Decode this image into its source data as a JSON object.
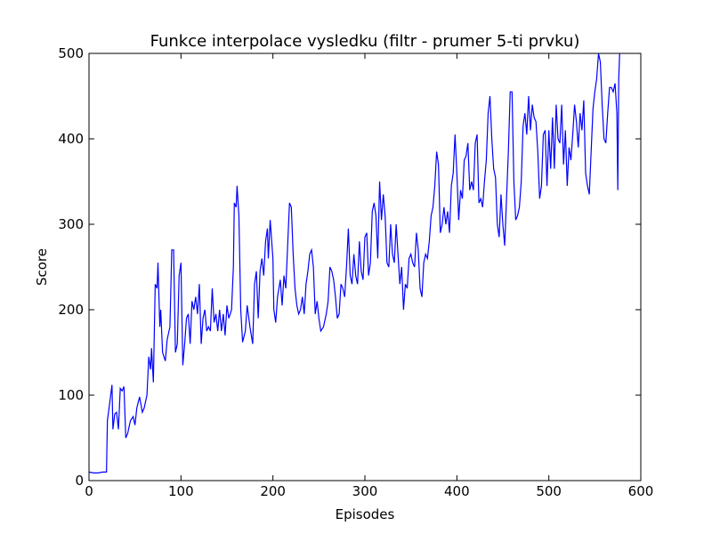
{
  "chart_data": {
    "type": "line",
    "title": "Funkce interpolace vysledku (filtr - prumer 5-ti prvku)",
    "x_label": "Episodes",
    "y_label": "Score",
    "xlim": [
      0,
      600
    ],
    "ylim": [
      0,
      500
    ],
    "xticks": [
      0,
      100,
      200,
      300,
      400,
      500,
      600
    ],
    "yticks": [
      0,
      100,
      200,
      300,
      400,
      500
    ],
    "grid": false,
    "series": [
      {
        "name": "score",
        "color": "#0000ff",
        "x": [
          0,
          5,
          10,
          15,
          19,
          20,
          23,
          25,
          26,
          28,
          30,
          32,
          34,
          36,
          38,
          40,
          42,
          45,
          48,
          50,
          52,
          55,
          58,
          60,
          63,
          65,
          67,
          68,
          70,
          72,
          74,
          75,
          77,
          78,
          80,
          83,
          85,
          88,
          90,
          92,
          94,
          96,
          98,
          100,
          102,
          104,
          106,
          108,
          110,
          112,
          114,
          116,
          118,
          120,
          122,
          124,
          126,
          128,
          130,
          132,
          134,
          136,
          138,
          140,
          142,
          144,
          146,
          148,
          150,
          152,
          155,
          157,
          158,
          160,
          161,
          163,
          165,
          167,
          170,
          172,
          175,
          178,
          180,
          182,
          184,
          186,
          188,
          190,
          192,
          194,
          195,
          197,
          199,
          200,
          201,
          203,
          205,
          208,
          210,
          212,
          214,
          216,
          218,
          220,
          222,
          224,
          226,
          228,
          230,
          232,
          234,
          236,
          238,
          240,
          242,
          244,
          246,
          248,
          250,
          252,
          255,
          258,
          260,
          262,
          264,
          266,
          268,
          270,
          272,
          274,
          276,
          278,
          280,
          282,
          284,
          286,
          288,
          290,
          292,
          294,
          296,
          298,
          300,
          302,
          304,
          306,
          308,
          310,
          312,
          314,
          316,
          318,
          320,
          322,
          324,
          326,
          328,
          330,
          332,
          334,
          336,
          338,
          340,
          342,
          344,
          346,
          348,
          350,
          352,
          354,
          356,
          358,
          360,
          362,
          364,
          366,
          368,
          370,
          372,
          374,
          376,
          378,
          380,
          382,
          384,
          386,
          388,
          390,
          392,
          394,
          396,
          398,
          400,
          402,
          404,
          406,
          408,
          410,
          412,
          414,
          416,
          418,
          420,
          422,
          424,
          426,
          428,
          430,
          432,
          434,
          436,
          438,
          440,
          442,
          444,
          446,
          448,
          450,
          452,
          454,
          456,
          458,
          460,
          462,
          464,
          466,
          468,
          470,
          472,
          474,
          476,
          478,
          480,
          482,
          484,
          486,
          488,
          490,
          492,
          494,
          496,
          498,
          500,
          502,
          504,
          506,
          508,
          510,
          512,
          514,
          516,
          518,
          520,
          522,
          524,
          526,
          528,
          530,
          532,
          534,
          536,
          538,
          540,
          542,
          544,
          546,
          548,
          550,
          552,
          554,
          556,
          558,
          560,
          562,
          564,
          566,
          568,
          570,
          572,
          574,
          575,
          576,
          577
        ],
        "values": [
          10,
          9,
          9,
          10,
          10,
          70,
          95,
          112,
          60,
          78,
          80,
          60,
          108,
          105,
          110,
          50,
          55,
          70,
          75,
          65,
          85,
          98,
          80,
          85,
          100,
          145,
          130,
          155,
          115,
          230,
          225,
          255,
          180,
          200,
          150,
          140,
          165,
          180,
          270,
          270,
          150,
          160,
          240,
          255,
          135,
          160,
          190,
          195,
          160,
          210,
          200,
          215,
          195,
          230,
          160,
          190,
          200,
          175,
          180,
          175,
          225,
          185,
          195,
          175,
          200,
          175,
          195,
          170,
          205,
          190,
          200,
          250,
          325,
          320,
          345,
          310,
          200,
          162,
          175,
          205,
          180,
          160,
          230,
          245,
          190,
          245,
          260,
          240,
          280,
          295,
          260,
          305,
          275,
          260,
          200,
          185,
          215,
          235,
          205,
          240,
          225,
          275,
          325,
          320,
          265,
          225,
          205,
          195,
          200,
          215,
          195,
          230,
          245,
          265,
          270,
          250,
          195,
          210,
          190,
          175,
          180,
          195,
          210,
          250,
          245,
          235,
          215,
          190,
          195,
          230,
          225,
          215,
          250,
          295,
          240,
          230,
          265,
          240,
          230,
          280,
          245,
          235,
          285,
          290,
          240,
          255,
          315,
          325,
          310,
          260,
          350,
          305,
          335,
          310,
          255,
          250,
          300,
          265,
          255,
          300,
          265,
          230,
          250,
          200,
          230,
          225,
          260,
          265,
          255,
          250,
          290,
          270,
          225,
          215,
          255,
          265,
          260,
          280,
          310,
          320,
          345,
          385,
          370,
          290,
          300,
          320,
          300,
          315,
          290,
          345,
          360,
          405,
          360,
          305,
          340,
          330,
          375,
          380,
          395,
          340,
          350,
          340,
          395,
          405,
          325,
          330,
          320,
          350,
          375,
          430,
          450,
          400,
          365,
          355,
          300,
          285,
          335,
          300,
          275,
          330,
          385,
          455,
          455,
          350,
          305,
          310,
          320,
          350,
          415,
          430,
          405,
          450,
          410,
          440,
          425,
          420,
          385,
          330,
          345,
          405,
          410,
          345,
          410,
          365,
          425,
          365,
          440,
          400,
          395,
          440,
          370,
          410,
          345,
          390,
          375,
          405,
          440,
          420,
          390,
          430,
          410,
          445,
          360,
          345,
          335,
          385,
          435,
          455,
          470,
          500,
          490,
          440,
          400,
          395,
          430,
          460,
          460,
          455,
          465,
          430,
          340,
          470,
          500
        ]
      }
    ]
  }
}
